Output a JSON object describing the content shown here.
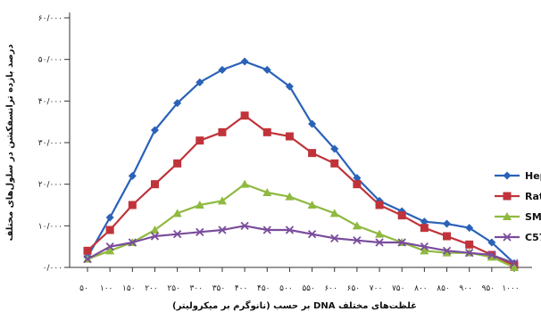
{
  "chart_data": {
    "type": "line",
    "x": [
      50,
      100,
      150,
      200,
      250,
      300,
      350,
      400,
      450,
      500,
      550,
      600,
      650,
      700,
      750,
      800,
      850,
      900,
      950,
      1000
    ],
    "xlim": [
      50,
      1000
    ],
    "ylim": [
      0,
      60
    ],
    "xlabel": "غلظت‌های مختلف DNA بر حسب (نانوگرم بر میکرولیتر)",
    "ylabel": "درصد بازده ترانسفکشن در سلول‌های مختلف",
    "x_tick_labels": [
      "۵۰",
      "۱۰۰",
      "۱۵۰",
      "۲۰۰",
      "۲۵۰",
      "۳۰۰",
      "۳۵۰",
      "۴۰۰",
      "۴۵۰",
      "۵۰۰",
      "۵۵۰",
      "۶۰۰",
      "۶۵۰",
      "۷۰۰",
      "۷۵۰",
      "۸۰۰",
      "۸۵۰",
      "۹۰۰",
      "۹۵۰",
      "۱۰۰۰"
    ],
    "y_ticks": [
      0,
      10,
      20,
      30,
      40,
      50,
      60
    ],
    "y_tick_labels": [
      "۰/۰۰۰",
      "۱۰/۰۰۰",
      "۲۰/۰۰۰",
      "۳۰/۰۰۰",
      "۴۰/۰۰۰",
      "۵۰/۰۰۰",
      "۶۰/۰۰۰"
    ],
    "legend_position": "right",
    "grid": false,
    "series": [
      {
        "name": "Hepa",
        "color": "#2a62b8",
        "marker": "diamond",
        "values": [
          2.5,
          12,
          22,
          33,
          39.5,
          44.5,
          47.5,
          49.5,
          47.5,
          43.5,
          34.5,
          28.5,
          21.5,
          16,
          13.5,
          11,
          10.5,
          9.5,
          6,
          1
        ]
      },
      {
        "name": "Rat",
        "color": "#c0333a",
        "marker": "square",
        "values": [
          4,
          9,
          15,
          20,
          25,
          30.5,
          32.5,
          36.5,
          32.5,
          31.5,
          27.5,
          25,
          20,
          15,
          12.5,
          9.5,
          7.5,
          5.5,
          3,
          0.5
        ]
      },
      {
        "name": "SM",
        "color": "#8fb93f",
        "marker": "triangle",
        "values": [
          2,
          4,
          6,
          9,
          13,
          15,
          16,
          20,
          18,
          17,
          15,
          13,
          10,
          8,
          6,
          4,
          3.5,
          3.5,
          2.5,
          0
        ]
      },
      {
        "name": "C57",
        "color": "#7a4d9c",
        "marker": "x",
        "values": [
          2,
          5,
          6,
          7.5,
          8,
          8.5,
          9,
          10,
          9,
          9,
          8,
          7,
          6.5,
          6,
          6,
          5,
          4,
          3.5,
          3,
          1
        ]
      }
    ]
  }
}
